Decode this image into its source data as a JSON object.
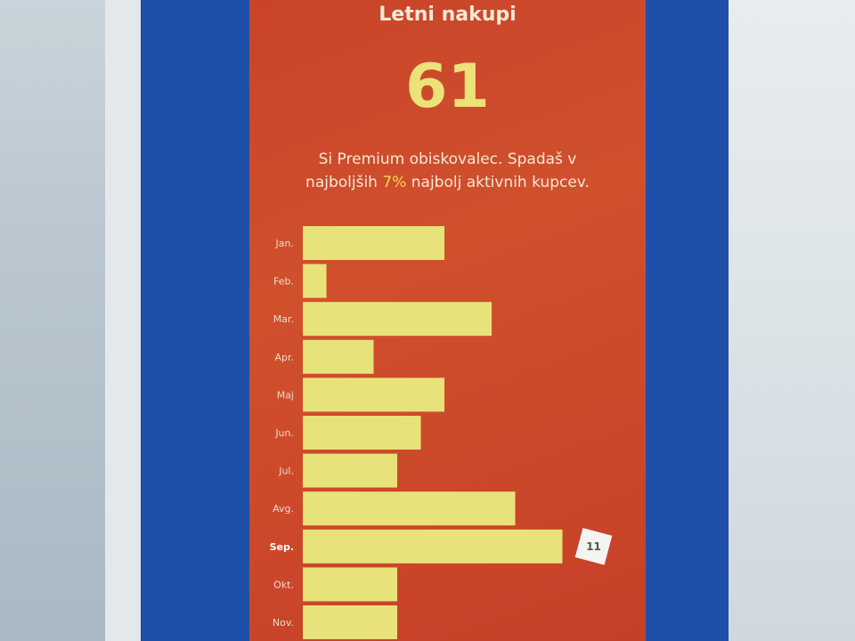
{
  "header": {
    "title": "Letni nakupi",
    "total": "61"
  },
  "message": {
    "line1": "Si Premium obiskovalec. Spadaš v",
    "line2_pre": "najboljših ",
    "line2_highlight": "7%",
    "line2_post": " najbolj aktivnih kupcev."
  },
  "colors": {
    "panel": "#cc4a2b",
    "bar": "#e8e27a",
    "frame": "#1f4fa8",
    "highlight": "#f2d85a"
  },
  "chart_data": {
    "type": "bar",
    "orientation": "horizontal",
    "categories": [
      "Jan.",
      "Feb.",
      "Mar.",
      "Apr.",
      "Maj",
      "Jun.",
      "Jul.",
      "Avg.",
      "Sep.",
      "Okt.",
      "Nov."
    ],
    "values": [
      6,
      1,
      8,
      3,
      6,
      5,
      4,
      9,
      11,
      4,
      4
    ],
    "highlighted": {
      "category": "Sep.",
      "label": "11"
    },
    "grid": false
  }
}
